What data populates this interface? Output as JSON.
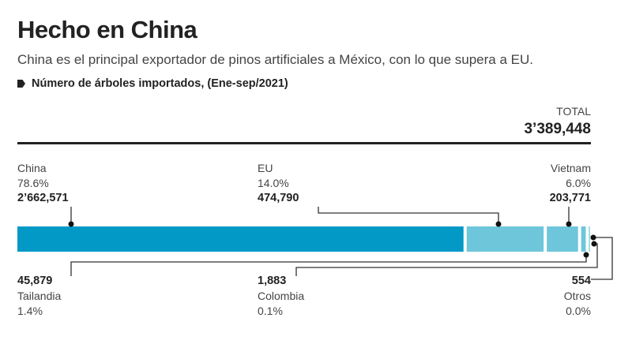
{
  "title": "Hecho en China",
  "subtitle": "China es el principal exportador de pinos artificiales a México, con lo que supera a EU.",
  "legend": "Número de árboles importados, (Ene-sep/2021)",
  "total_label": "TOTAL",
  "total_value": "3’389,448",
  "chart_data": {
    "type": "bar",
    "orientation": "horizontal-stacked",
    "title": "Hecho en China",
    "categories": [
      "China",
      "EU",
      "Vietnam",
      "Tailandia",
      "Colombia",
      "Otros"
    ],
    "values": [
      2662571,
      474790,
      203771,
      45879,
      1883,
      554
    ],
    "labels": [
      {
        "name": "China",
        "pct": "78.6%",
        "value": "2’662,571"
      },
      {
        "name": "EU",
        "pct": "14.0%",
        "value": "474,790"
      },
      {
        "name": "Vietnam",
        "pct": "6.0%",
        "value": "203,771"
      },
      {
        "name": "Tailandia",
        "pct": "1.4%",
        "value": "45,879"
      },
      {
        "name": "Colombia",
        "pct": "0.1%",
        "value": "1,883"
      },
      {
        "name": "Otros",
        "pct": "0.0%",
        "value": "554"
      }
    ],
    "colors": [
      "#0399c6",
      "#6ec6db",
      "#6ec6db",
      "#6ec6db",
      "#6ec6db",
      "#6ec6db"
    ]
  }
}
